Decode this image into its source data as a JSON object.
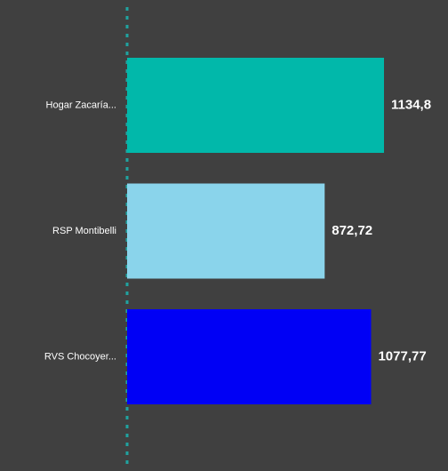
{
  "chart_data": {
    "type": "bar",
    "orientation": "horizontal",
    "categories": [
      "Hogar Zacaría...",
      "RSP Montibelli",
      "RVS Chocoyer..."
    ],
    "values": [
      1134.8,
      872.72,
      1077.77
    ],
    "value_labels": [
      "1134,8",
      "872,72",
      "1077,77"
    ],
    "colors": [
      "#01b8aa",
      "#8ad4eb",
      "#0000f5"
    ]
  }
}
